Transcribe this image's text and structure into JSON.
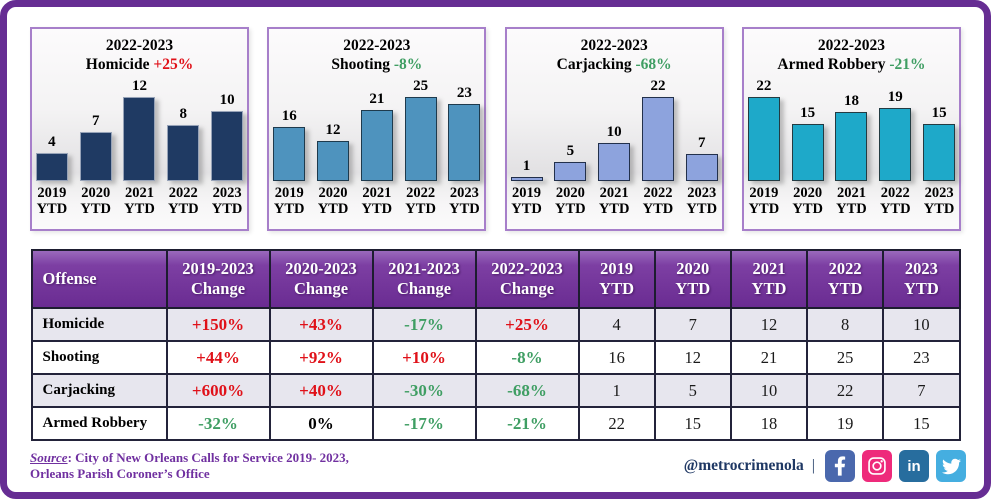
{
  "page": {
    "background": "#ffffff",
    "frame_border_color": "#662d93"
  },
  "colors": {
    "up": "#e01119",
    "down": "#3f9e63",
    "neutral": "#000000",
    "header_purple": "#6f2f96",
    "table_border_purple": "#7030a0",
    "chart_box_border": "#a77fca",
    "source_text": "#7030a0",
    "handle_navy": "#1f3864"
  },
  "chart_data": [
    {
      "type": "bar",
      "title": "2022-2023 Homicide +25%",
      "year_range": "2022-2023",
      "name": "Homicide",
      "change": "+25%",
      "change_dir": "up",
      "bar_color": "#1f3a63",
      "bar_border": "#97a3b8",
      "categories": [
        "2019 YTD",
        "2020 YTD",
        "2021 YTD",
        "2022 YTD",
        "2023 YTD"
      ],
      "values": [
        4,
        7,
        12,
        8,
        10
      ],
      "ylim": [
        0,
        12
      ],
      "grid": false,
      "legend": false
    },
    {
      "type": "bar",
      "title": "2022-2023 Shooting -8%",
      "year_range": "2022-2023",
      "name": "Shooting",
      "change": "-8%",
      "change_dir": "down",
      "bar_color": "#4e93be",
      "bar_border": "#1e3a4d",
      "categories": [
        "2019 YTD",
        "2020 YTD",
        "2021 YTD",
        "2022 YTD",
        "2023 YTD"
      ],
      "values": [
        16,
        12,
        21,
        25,
        23
      ],
      "ylim": [
        0,
        25
      ],
      "grid": false,
      "legend": false
    },
    {
      "type": "bar",
      "title": "2022-2023 Carjacking -68%",
      "year_range": "2022-2023",
      "name": "Carjacking",
      "change": "-68%",
      "change_dir": "down",
      "bar_color": "#8da3dd",
      "bar_border": "#22304b",
      "categories": [
        "2019 YTD",
        "2020 YTD",
        "2021 YTD",
        "2022 YTD",
        "2023 YTD"
      ],
      "values": [
        1,
        5,
        10,
        22,
        7
      ],
      "ylim": [
        0,
        22
      ],
      "grid": false,
      "legend": false
    },
    {
      "type": "bar",
      "title": "2022-2023 Armed Robbery -21%",
      "year_range": "2022-2023",
      "name": "Armed Robbery",
      "change": "-21%",
      "change_dir": "down",
      "bar_color": "#1ea9c9",
      "bar_border": "#233b42",
      "categories": [
        "2019 YTD",
        "2020 YTD",
        "2021 YTD",
        "2022 YTD",
        "2023 YTD"
      ],
      "values": [
        22,
        15,
        18,
        19,
        15
      ],
      "ylim": [
        0,
        22
      ],
      "grid": false,
      "legend": false
    }
  ],
  "table": {
    "headers": [
      "Offense",
      "2019-2023\nChange",
      "2020-2023\nChange",
      "2021-2023\nChange",
      "2022-2023\nChange",
      "2019\nYTD",
      "2020\nYTD",
      "2021\nYTD",
      "2022\nYTD",
      "2023\nYTD"
    ],
    "rows": [
      {
        "offense": "Homicide",
        "changes": [
          {
            "v": "+150%",
            "c": "up"
          },
          {
            "v": "+43%",
            "c": "up"
          },
          {
            "v": "-17%",
            "c": "down"
          },
          {
            "v": "+25%",
            "c": "up"
          }
        ],
        "ytd": [
          "4",
          "7",
          "12",
          "8",
          "10"
        ]
      },
      {
        "offense": "Shooting",
        "changes": [
          {
            "v": "+44%",
            "c": "up"
          },
          {
            "v": "+92%",
            "c": "up"
          },
          {
            "v": "+10%",
            "c": "up"
          },
          {
            "v": "-8%",
            "c": "down"
          }
        ],
        "ytd": [
          "16",
          "12",
          "21",
          "25",
          "23"
        ]
      },
      {
        "offense": "Carjacking",
        "changes": [
          {
            "v": "+600%",
            "c": "up"
          },
          {
            "v": "+40%",
            "c": "up"
          },
          {
            "v": "-30%",
            "c": "down"
          },
          {
            "v": "-68%",
            "c": "down"
          }
        ],
        "ytd": [
          "1",
          "5",
          "10",
          "22",
          "7"
        ]
      },
      {
        "offense": "Armed Robbery",
        "changes": [
          {
            "v": "-32%",
            "c": "down"
          },
          {
            "v": "0%",
            "c": "neutral"
          },
          {
            "v": "-17%",
            "c": "down"
          },
          {
            "v": "-21%",
            "c": "down"
          }
        ],
        "ytd": [
          "22",
          "15",
          "18",
          "19",
          "15"
        ]
      }
    ]
  },
  "footer": {
    "source_label": "Source",
    "source_line1": ": City of New Orleans Calls for Service 2019- 2023,",
    "source_line2": "Orleans Parish Coroner’s Office",
    "handle": "@metrocrimenola",
    "separator": "|",
    "social_icons": [
      {
        "name": "facebook",
        "color": "#4a68ad"
      },
      {
        "name": "instagram",
        "color": "#ee2a7b"
      },
      {
        "name": "linkedin",
        "color": "#276d9e"
      },
      {
        "name": "twitter",
        "color": "#45aee0"
      }
    ]
  }
}
